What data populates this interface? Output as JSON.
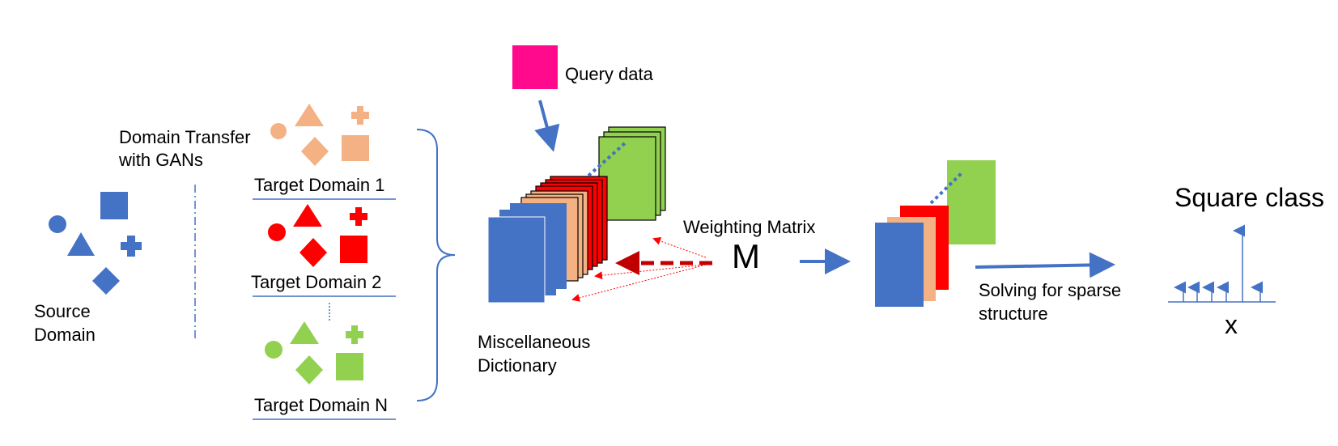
{
  "source": {
    "label_line1": "Source",
    "label_line2": "Domain"
  },
  "transfer": {
    "line1": "Domain Transfer",
    "line2": "with GANs"
  },
  "targets": [
    {
      "label": "Target Domain 1",
      "color": "#F4B183"
    },
    {
      "label": "Target Domain 2",
      "color": "#FF0000"
    },
    {
      "label": "Target Domain N",
      "color": "#92D050"
    }
  ],
  "query": {
    "label": "Query data",
    "color": "#FF0A8C"
  },
  "dictionary": {
    "line1": "Miscellaneous",
    "line2": "Dictionary"
  },
  "weighting": {
    "label": "Weighting Matrix",
    "symbol": "M"
  },
  "sparse": {
    "line1": "Solving for sparse",
    "line2": "structure"
  },
  "result": {
    "class_label": "Square class",
    "vector_label": "x"
  },
  "colors": {
    "blue": "#4472C4",
    "peach": "#F4B183",
    "red": "#FF0000",
    "green": "#92D050",
    "dark_red": "#C00000"
  }
}
